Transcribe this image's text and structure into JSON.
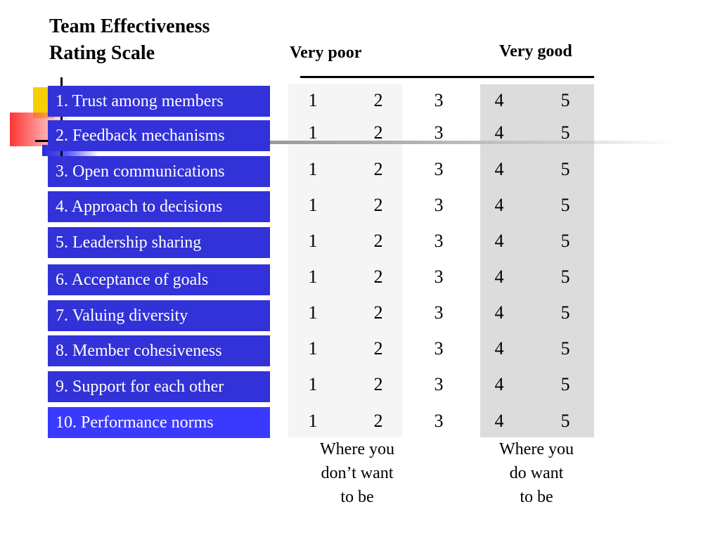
{
  "title": {
    "line1": "Team Effectiveness",
    "line2": "Rating Scale"
  },
  "scale": {
    "low_label": "Very poor",
    "high_label": "Very good",
    "values": [
      "1",
      "2",
      "3",
      "4",
      "5"
    ]
  },
  "items": [
    "1. Trust among members",
    "2. Feedback mechanisms",
    "3. Open communications",
    "4. Approach to decisions",
    "5. Leadership sharing",
    "6. Acceptance of goals",
    "7. Valuing diversity",
    "8. Member cohesiveness",
    "9. Support for each other",
    "10. Performance norms"
  ],
  "notes": {
    "low": [
      "Where you",
      "don’t want",
      "to be"
    ],
    "high": [
      "Where you",
      "do want",
      "to be"
    ]
  },
  "colors": {
    "item_box": "#3232d8",
    "item_text": "#ffffff",
    "low_panel": "#f5f5f5",
    "high_panel": "#dcdcdc"
  }
}
